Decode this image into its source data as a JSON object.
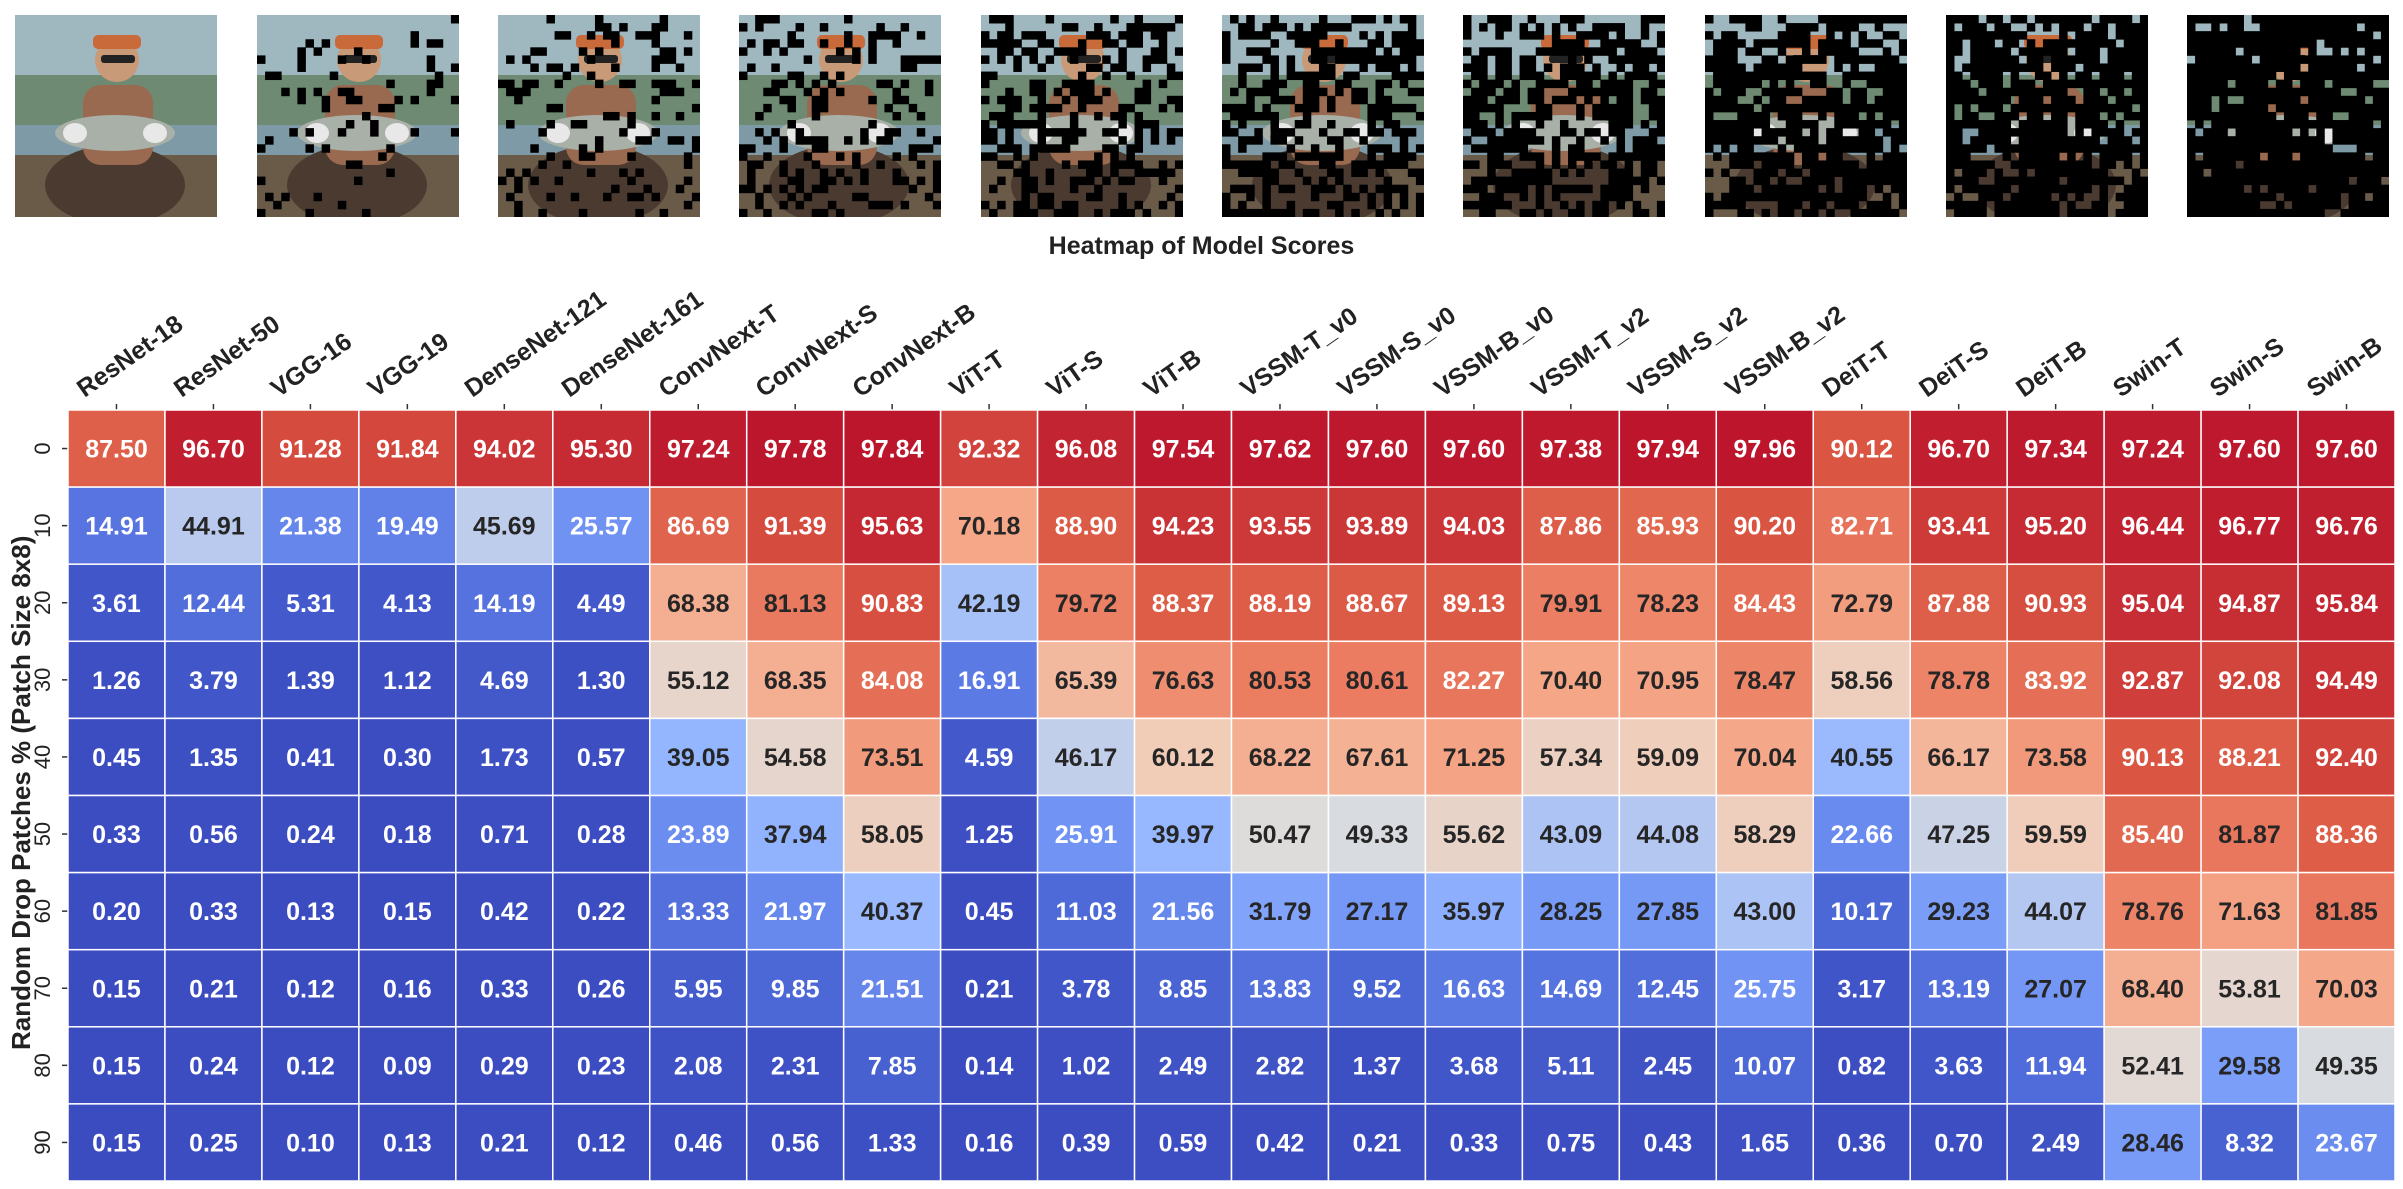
{
  "thumbnails": {
    "drop_levels": [
      0,
      10,
      20,
      30,
      40,
      50,
      60,
      70,
      80,
      90
    ],
    "description_icon": "fish-photo-icon"
  },
  "chart_data": {
    "type": "heatmap",
    "title": "Heatmap of Model Scores",
    "xlabel": "",
    "ylabel": "Random Drop Patches % (Patch Size 8x8)",
    "x": [
      "ResNet-18",
      "ResNet-50",
      "VGG-16",
      "VGG-19",
      "DenseNet-121",
      "DenseNet-161",
      "ConvNext-T",
      "ConvNext-S",
      "ConvNext-B",
      "ViT-T",
      "ViT-S",
      "ViT-B",
      "VSSM-T_v0",
      "VSSM-S_v0",
      "VSSM-B_v0",
      "VSSM-T_v2",
      "VSSM-S_v2",
      "VSSM-B_v2",
      "DeiT-T",
      "DeiT-S",
      "DeiT-B",
      "Swin-T",
      "Swin-S",
      "Swin-B"
    ],
    "y": [
      "0",
      "10",
      "20",
      "30",
      "40",
      "50",
      "60",
      "70",
      "80",
      "90"
    ],
    "values": [
      [
        "87.50",
        "96.70",
        "91.28",
        "91.84",
        "94.02",
        "95.30",
        "97.24",
        "97.78",
        "97.84",
        "92.32",
        "96.08",
        "97.54",
        "97.62",
        "97.60",
        "97.60",
        "97.38",
        "97.94",
        "97.96",
        "90.12",
        "96.70",
        "97.34",
        "97.24",
        "97.60",
        "97.60"
      ],
      [
        "14.91",
        "44.91",
        "21.38",
        "19.49",
        "45.69",
        "25.57",
        "86.69",
        "91.39",
        "95.63",
        "70.18",
        "88.90",
        "94.23",
        "93.55",
        "93.89",
        "94.03",
        "87.86",
        "85.93",
        "90.20",
        "82.71",
        "93.41",
        "95.20",
        "96.44",
        "96.77",
        "96.76"
      ],
      [
        "3.61",
        "12.44",
        "5.31",
        "4.13",
        "14.19",
        "4.49",
        "68.38",
        "81.13",
        "90.83",
        "42.19",
        "79.72",
        "88.37",
        "88.19",
        "88.67",
        "89.13",
        "79.91",
        "78.23",
        "84.43",
        "72.79",
        "87.88",
        "90.93",
        "95.04",
        "94.87",
        "95.84"
      ],
      [
        "1.26",
        "3.79",
        "1.39",
        "1.12",
        "4.69",
        "1.30",
        "55.12",
        "68.35",
        "84.08",
        "16.91",
        "65.39",
        "76.63",
        "80.53",
        "80.61",
        "82.27",
        "70.40",
        "70.95",
        "78.47",
        "58.56",
        "78.78",
        "83.92",
        "92.87",
        "92.08",
        "94.49"
      ],
      [
        "0.45",
        "1.35",
        "0.41",
        "0.30",
        "1.73",
        "0.57",
        "39.05",
        "54.58",
        "73.51",
        "4.59",
        "46.17",
        "60.12",
        "68.22",
        "67.61",
        "71.25",
        "57.34",
        "59.09",
        "70.04",
        "40.55",
        "66.17",
        "73.58",
        "90.13",
        "88.21",
        "92.40"
      ],
      [
        "0.33",
        "0.56",
        "0.24",
        "0.18",
        "0.71",
        "0.28",
        "23.89",
        "37.94",
        "58.05",
        "1.25",
        "25.91",
        "39.97",
        "50.47",
        "49.33",
        "55.62",
        "43.09",
        "44.08",
        "58.29",
        "22.66",
        "47.25",
        "59.59",
        "85.40",
        "81.87",
        "88.36"
      ],
      [
        "0.20",
        "0.33",
        "0.13",
        "0.15",
        "0.42",
        "0.22",
        "13.33",
        "21.97",
        "40.37",
        "0.45",
        "11.03",
        "21.56",
        "31.79",
        "27.17",
        "35.97",
        "28.25",
        "27.85",
        "43.00",
        "10.17",
        "29.23",
        "44.07",
        "78.76",
        "71.63",
        "81.85"
      ],
      [
        "0.15",
        "0.21",
        "0.12",
        "0.16",
        "0.33",
        "0.26",
        "5.95",
        "9.85",
        "21.51",
        "0.21",
        "3.78",
        "8.85",
        "13.83",
        "9.52",
        "16.63",
        "14.69",
        "12.45",
        "25.75",
        "3.17",
        "13.19",
        "27.07",
        "68.40",
        "53.81",
        "70.03"
      ],
      [
        "0.15",
        "0.24",
        "0.12",
        "0.09",
        "0.29",
        "0.23",
        "2.08",
        "2.31",
        "7.85",
        "0.14",
        "1.02",
        "2.49",
        "2.82",
        "1.37",
        "3.68",
        "5.11",
        "2.45",
        "10.07",
        "0.82",
        "3.63",
        "11.94",
        "52.41",
        "29.58",
        "49.35"
      ],
      [
        "0.15",
        "0.25",
        "0.10",
        "0.13",
        "0.21",
        "0.12",
        "0.46",
        "0.56",
        "1.33",
        "0.16",
        "0.39",
        "0.59",
        "0.42",
        "0.21",
        "0.33",
        "0.75",
        "0.43",
        "1.65",
        "0.36",
        "0.70",
        "2.49",
        "28.46",
        "8.32",
        "23.67"
      ]
    ],
    "colormap": "coolwarm",
    "value_range": [
      0,
      100
    ],
    "colorbar": false
  }
}
